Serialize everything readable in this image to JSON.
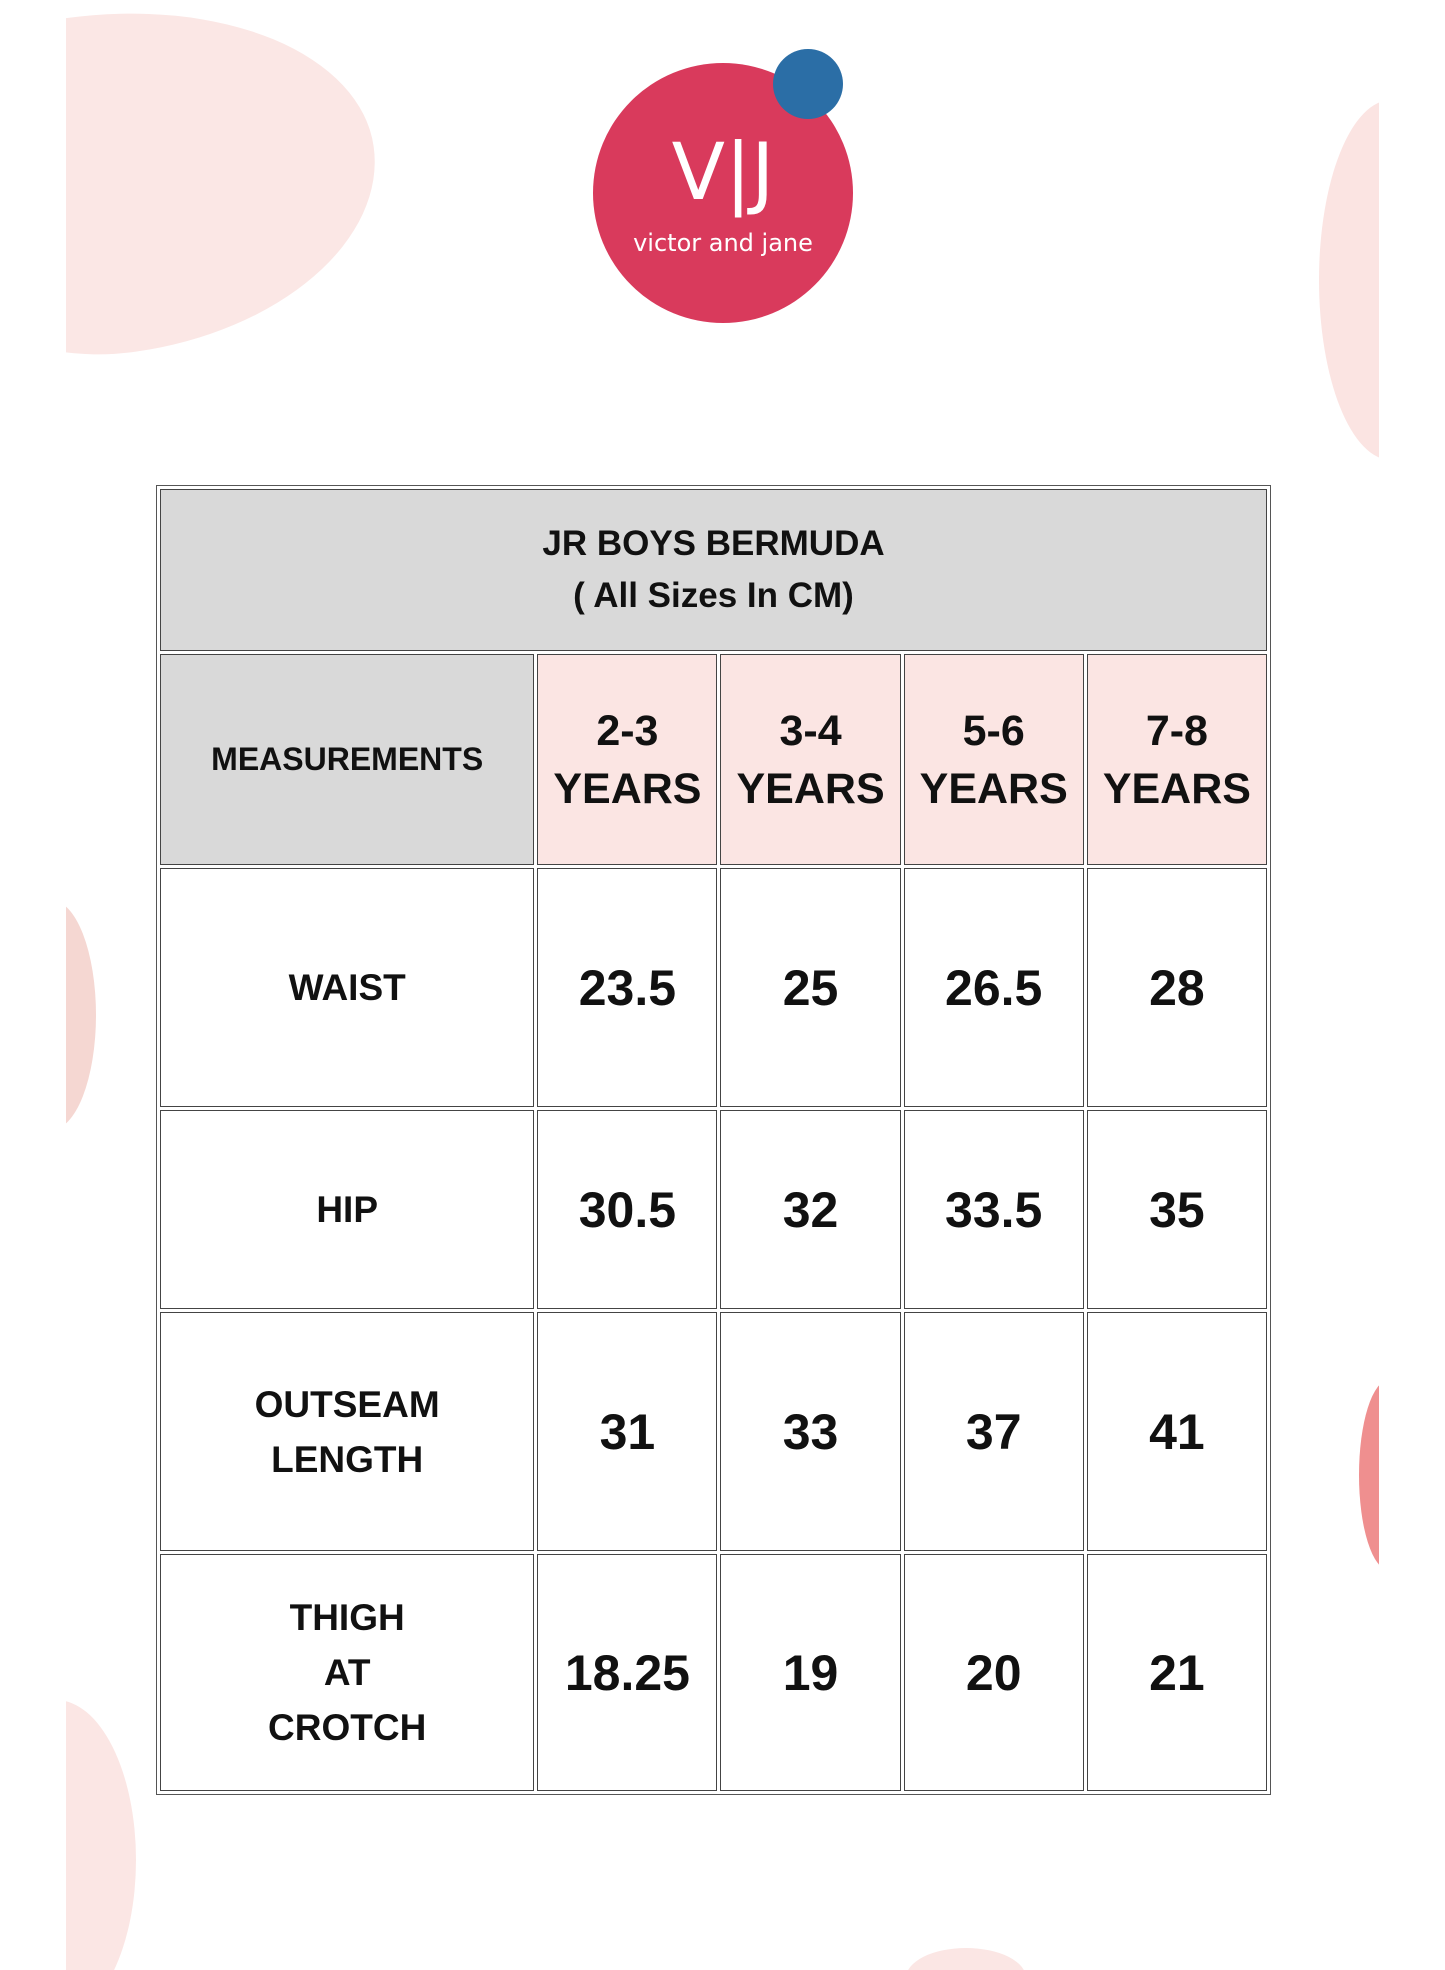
{
  "logo": {
    "mark": "V|J",
    "wordmark": "victor and jane",
    "brand_color": "#d93a5c",
    "dot_color": "#2b6ea6"
  },
  "table": {
    "title": "JR BOYS BERMUDA",
    "subtitle": "( All Sizes In CM)",
    "measurements_header": "MEASUREMENTS",
    "sizes": [
      {
        "line1": "2-3",
        "line2": "YEARS"
      },
      {
        "line1": "3-4",
        "line2": "YEARS"
      },
      {
        "line1": "5-6",
        "line2": "YEARS"
      },
      {
        "line1": "7-8",
        "line2": "YEARS"
      }
    ],
    "rows": [
      {
        "label": [
          "WAIST"
        ],
        "values": [
          "23.5",
          "25",
          "26.5",
          "28"
        ]
      },
      {
        "label": [
          "HIP"
        ],
        "values": [
          "30.5",
          "32",
          "33.5",
          "35"
        ]
      },
      {
        "label": [
          "OUTSEAM",
          "LENGTH"
        ],
        "values": [
          "31",
          "33",
          "37",
          "41"
        ]
      },
      {
        "label": [
          "THIGH",
          "AT",
          "CROTCH"
        ],
        "values": [
          "18.25",
          "19",
          "20",
          "21"
        ]
      }
    ],
    "header_bg": "#d9d9d9",
    "size_header_bg": "#fbe5e3"
  }
}
